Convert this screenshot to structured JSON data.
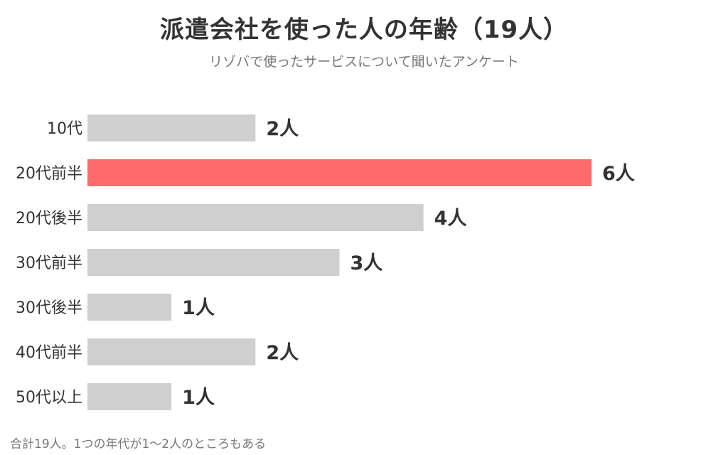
{
  "chart_data": {
    "type": "bar",
    "orientation": "horizontal",
    "title": "派遣会社を使った人の年齢（19人）",
    "subtitle": "リゾバで使ったサービスについて聞いたアンケート",
    "categories": [
      "10代",
      "20代前半",
      "20代後半",
      "30代前半",
      "30代後半",
      "40代前半",
      "50代以上"
    ],
    "values": [
      2,
      6,
      4,
      3,
      1,
      2,
      1
    ],
    "value_labels": [
      "2人",
      "6人",
      "4人",
      "3人",
      "1人",
      "2人",
      "1人"
    ],
    "highlight_index": 1,
    "xlim": [
      0,
      6
    ],
    "grid": false,
    "colors": {
      "default_bar": "#cfcfcf",
      "highlight_bar": "#ff6b6b"
    },
    "footnote": "合計19人。1つの年代が1〜2人のところもある"
  }
}
